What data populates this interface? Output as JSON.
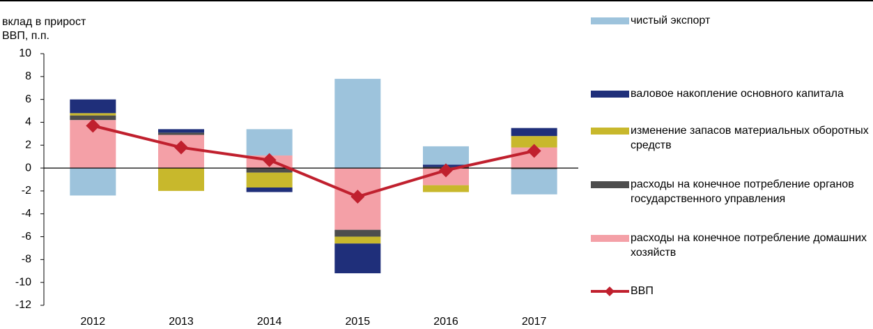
{
  "chart_data": {
    "type": "bar",
    "y_label": [
      "вклад в прирост",
      "ВВП, п.п."
    ],
    "categories": [
      "2012",
      "2013",
      "2014",
      "2015",
      "2016",
      "2017"
    ],
    "series": [
      {
        "name": "чистый экспорт",
        "color": "#9dc3dc",
        "values": [
          -2.4,
          0,
          2.3,
          7.8,
          1.6,
          -2.2
        ]
      },
      {
        "name": "валовое накопление основного капитала",
        "color": "#1f2f7a",
        "values": [
          1.2,
          0.3,
          -0.4,
          -2.6,
          0.2,
          0.7
        ]
      },
      {
        "name": "изменение запасов материальных оборотных средств",
        "color": "#c8b82c",
        "values": [
          0.2,
          -2.0,
          -1.3,
          -0.6,
          -0.6,
          1.0
        ]
      },
      {
        "name": "расходы на конечное потребление органов государственного управления",
        "color": "#4d4d4d",
        "values": [
          0.4,
          0.2,
          -0.4,
          -0.6,
          0.1,
          -0.1
        ]
      },
      {
        "name": "расходы на конечное потребление домашних хозяйств",
        "color": "#f4a0a7",
        "values": [
          4.2,
          2.9,
          1.1,
          -5.4,
          -1.5,
          1.8
        ]
      },
      {
        "name": "ВВП",
        "type": "line",
        "color": "#c0202e",
        "values": [
          3.7,
          1.8,
          0.7,
          -2.5,
          -0.2,
          1.5
        ]
      }
    ],
    "ylim": [
      -12,
      10
    ],
    "yticks": [
      -12,
      -10,
      -8,
      -6,
      -4,
      -2,
      0,
      2,
      4,
      6,
      8,
      10
    ]
  }
}
